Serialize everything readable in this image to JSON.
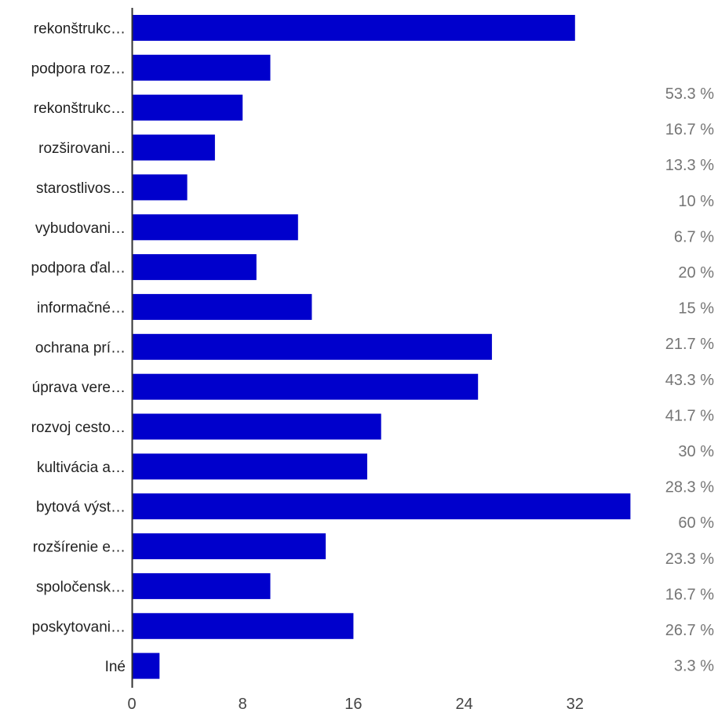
{
  "chart_data": {
    "type": "bar",
    "orientation": "horizontal",
    "categories": [
      "rekonštrukc…",
      "podpora roz…",
      "rekonštrukc…",
      "rozširovani…",
      "starostlivos…",
      "vybudovani…",
      "podpora ďal…",
      "informačné…",
      "ochrana prí…",
      "úprava vere…",
      "rozvoj cesto…",
      "kultivácia a…",
      "bytová výst…",
      "rozšírenie e…",
      "spoločensk…",
      "poskytovani…",
      "Iné"
    ],
    "values": [
      32,
      10,
      8,
      6,
      4,
      12,
      9,
      13,
      26,
      25,
      18,
      17,
      36,
      14,
      10,
      16,
      2
    ],
    "percent_labels": [
      "53.3 %",
      "16.7 %",
      "13.3 %",
      "10 %",
      "6.7 %",
      "20 %",
      "15 %",
      "21.7 %",
      "43.3 %",
      "41.7 %",
      "30 %",
      "28.3 %",
      "60 %",
      "23.3 %",
      "16.7 %",
      "26.7 %",
      "3.3 %"
    ],
    "x_ticks": [
      0,
      8,
      16,
      24,
      32
    ],
    "xlim": [
      0,
      36
    ],
    "bar_color": "#0000cc",
    "grid": false,
    "title": "",
    "xlabel": "",
    "ylabel": ""
  }
}
